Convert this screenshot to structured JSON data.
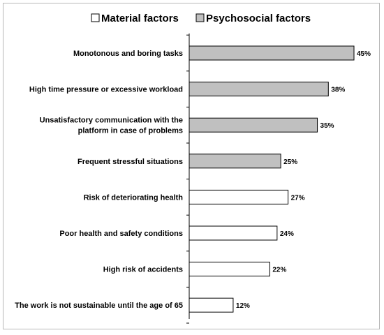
{
  "chart_data": {
    "type": "bar",
    "orientation": "horizontal",
    "categories": [
      [
        "Monotonous  and boring tasks"
      ],
      [
        "High time pressure or excessive workload"
      ],
      [
        "Unsatisfactory communication with the",
        "platform in case of problems"
      ],
      [
        "Frequent stressful situations"
      ],
      [
        "Risk of deteriorating health"
      ],
      [
        "Poor health and safety conditions"
      ],
      [
        "High risk of accidents"
      ],
      [
        "The work is not sustainable until the age of 65"
      ]
    ],
    "values": [
      45,
      38,
      35,
      25,
      27,
      24,
      22,
      12
    ],
    "value_labels": [
      "45%",
      "38%",
      "35%",
      "25%",
      "27%",
      "24%",
      "22%",
      "12%"
    ],
    "groups": [
      "Psychosocial factors",
      "Psychosocial factors",
      "Psychosocial factors",
      "Psychosocial factors",
      "Material factors",
      "Material factors",
      "Material factors",
      "Material factors"
    ],
    "xlim": [
      0,
      50
    ],
    "grid": false,
    "legend": {
      "placement": "top-center",
      "items": [
        {
          "label": "Material factors",
          "color": "#ffffff"
        },
        {
          "label": "Psychosocial factors",
          "color": "#c0c0c0"
        }
      ]
    },
    "colors": {
      "Material factors": "#ffffff",
      "Psychosocial factors": "#c0c0c0",
      "outline": "#000000",
      "axis": "#000000"
    }
  }
}
